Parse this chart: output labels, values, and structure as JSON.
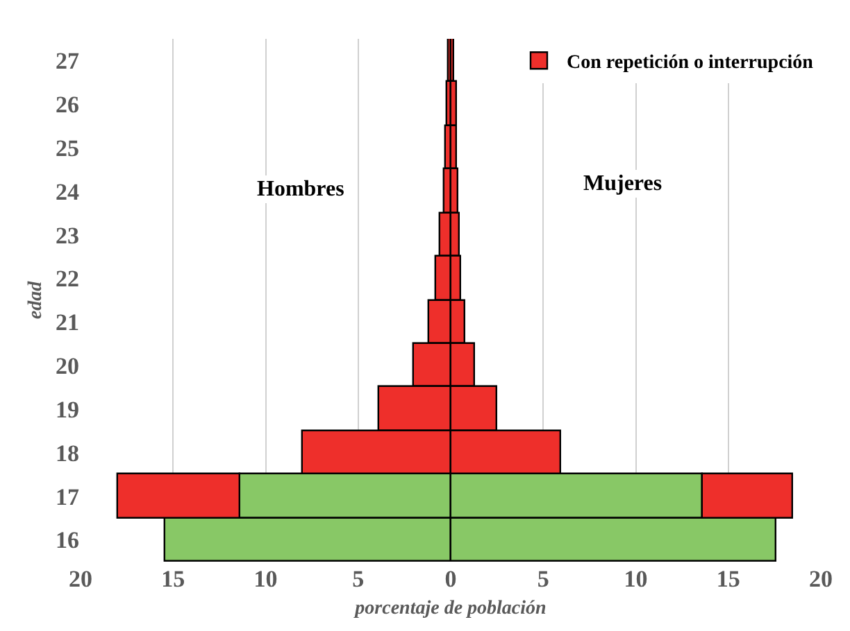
{
  "chart_data": {
    "type": "bar",
    "orientation": "horizontal",
    "stacked": true,
    "categories": [
      "27",
      "26",
      "25",
      "24",
      "23",
      "22",
      "21",
      "20",
      "19",
      "18",
      "17",
      "16"
    ],
    "series": [
      {
        "color": "#88c866",
        "values": [
          null,
          null,
          null,
          null,
          null,
          null,
          null,
          null,
          null,
          null,
          -11.4,
          -15.4
        ]
      },
      {
        "color": "#88c866",
        "values": [
          null,
          null,
          null,
          null,
          null,
          null,
          null,
          null,
          null,
          null,
          13.6,
          17.6
        ]
      },
      {
        "name": "Con repetición o interrupción",
        "color": "#ee2f2b",
        "values": [
          -0.15,
          -0.2,
          -0.3,
          -0.35,
          -0.55,
          -0.8,
          -1.15,
          -2.0,
          -3.9,
          -8.0,
          -6.6,
          null
        ]
      },
      {
        "color": "#ee2f2b",
        "values": [
          0.2,
          0.3,
          0.35,
          0.4,
          0.45,
          0.55,
          0.8,
          1.35,
          2.55,
          6.0,
          4.9,
          null
        ]
      }
    ],
    "xlim": [
      -20,
      20
    ],
    "xticks": [
      {
        "value": -20,
        "label": "20"
      },
      {
        "value": -15,
        "label": "15"
      },
      {
        "value": -10,
        "label": "10"
      },
      {
        "value": -5,
        "label": "5"
      },
      0,
      5,
      10,
      15,
      20
    ],
    "xlabel": "porcentaje de población",
    "ylabel": "edad",
    "annotations": [
      "Hombres",
      "Mujeres"
    ],
    "grid": "x",
    "legend": "top right"
  }
}
